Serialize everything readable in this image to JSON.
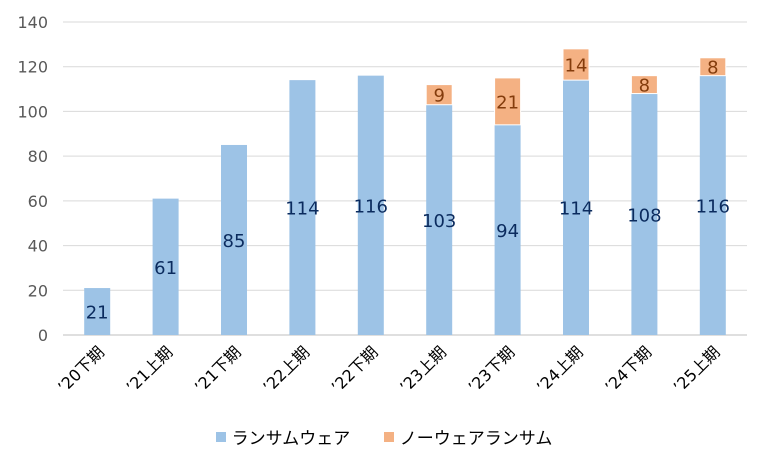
{
  "chart_data": {
    "type": "bar",
    "stacked": true,
    "categories": [
      "’20下期",
      "’21上期",
      "’21下期",
      "’22上期",
      "’22下期",
      "’23上期",
      "’23下期",
      "’24上期",
      "’24下期",
      "’25上期"
    ],
    "series": [
      {
        "name": "ランサムウェア",
        "values": [
          21,
          61,
          85,
          114,
          116,
          103,
          94,
          114,
          108,
          116
        ],
        "color": "#9DC3E6",
        "label_color": "#0B2B5E"
      },
      {
        "name": "ノーウェアランサム",
        "values": [
          0,
          0,
          0,
          0,
          0,
          9,
          21,
          14,
          8,
          8
        ],
        "color": "#F4B183",
        "label_color": "#843C0C"
      }
    ],
    "ylim": [
      0,
      140
    ],
    "yticks": [
      0,
      20,
      40,
      60,
      80,
      100,
      120,
      140
    ],
    "grid": true,
    "legend_position": "bottom",
    "title": "",
    "xlabel": "",
    "ylabel": ""
  }
}
